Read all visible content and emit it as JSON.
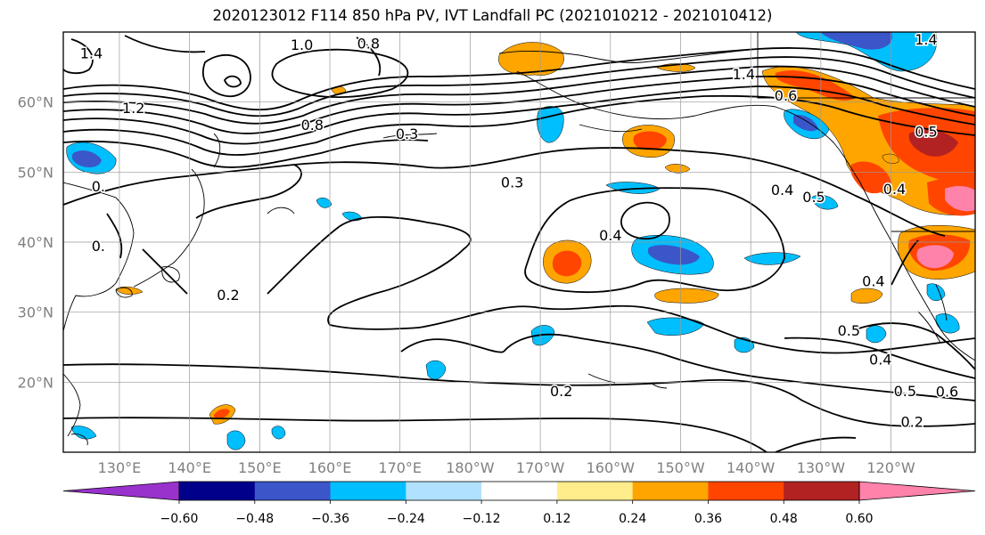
{
  "title": "2020123012 F114 850 hPa PV, IVT Landfall PC (2021010212 - 2021010412)",
  "map": {
    "lat_labels": [
      "60°N",
      "50°N",
      "40°N",
      "30°N",
      "20°N"
    ],
    "lon_labels": [
      "130°E",
      "140°E",
      "150°E",
      "160°E",
      "170°E",
      "180°W",
      "170°W",
      "160°W",
      "150°W",
      "140°W",
      "130°W",
      "120°W"
    ],
    "label_color": "#808080",
    "lat_values": [
      60,
      50,
      40,
      30,
      20
    ],
    "lon_values": [
      130,
      140,
      150,
      160,
      170,
      180,
      190,
      200,
      210,
      220,
      230,
      240
    ],
    "lon_range": [
      122,
      252
    ],
    "lat_range": [
      10,
      70
    ],
    "contour_labels": [
      {
        "text": "1.4",
        "lon": 126,
        "lat": 67
      },
      {
        "text": "1.0",
        "lon": 156,
        "lat": 68.2
      },
      {
        "text": "0.8",
        "lon": 165.5,
        "lat": 68.4
      },
      {
        "text": "1.2",
        "lon": 132,
        "lat": 59.2
      },
      {
        "text": "0.8",
        "lon": 157.5,
        "lat": 56.8
      },
      {
        "text": "0.3",
        "lon": 171,
        "lat": 55.5
      },
      {
        "text": "0.3",
        "lon": 186,
        "lat": 48.6
      },
      {
        "text": "0.4",
        "lon": 200,
        "lat": 41
      },
      {
        "text": "0.4",
        "lon": 224.5,
        "lat": 47.5
      },
      {
        "text": "0.5",
        "lon": 229,
        "lat": 46.5
      },
      {
        "text": "0.4",
        "lon": 240.5,
        "lat": 47.6
      },
      {
        "text": "0.6",
        "lon": 225,
        "lat": 61
      },
      {
        "text": "1.4",
        "lon": 219,
        "lat": 64
      },
      {
        "text": "1.4",
        "lon": 245,
        "lat": 69
      },
      {
        "text": "0.5",
        "lon": 245,
        "lat": 55.8
      },
      {
        "text": "0.2",
        "lon": 145.5,
        "lat": 32.5
      },
      {
        "text": "0.",
        "lon": 127,
        "lat": 48
      },
      {
        "text": "0.",
        "lon": 127,
        "lat": 39.5
      },
      {
        "text": "0.4",
        "lon": 237.5,
        "lat": 34.5
      },
      {
        "text": "0.5",
        "lon": 234,
        "lat": 27.4
      },
      {
        "text": "0.4",
        "lon": 238.5,
        "lat": 23.3
      },
      {
        "text": "0.6",
        "lon": 248,
        "lat": 18.7
      },
      {
        "text": "0.5",
        "lon": 242,
        "lat": 18.8
      },
      {
        "text": "0.2",
        "lon": 193,
        "lat": 18.8
      },
      {
        "text": "0.2",
        "lon": 243,
        "lat": 14.4
      }
    ]
  },
  "colorbar": {
    "ticks": [
      "−0.60",
      "−0.48",
      "−0.36",
      "−0.24",
      "−0.12",
      "0.12",
      "0.24",
      "0.36",
      "0.48",
      "0.60"
    ],
    "colors": [
      "#9932cc",
      "#00008b",
      "#3a56c8",
      "#00bfff",
      "#b0e2ff",
      "#ffffff",
      "#ffec8b",
      "#ffa500",
      "#ff4500",
      "#b22222",
      "#ff82ab",
      "#ff82ab"
    ],
    "extend": "both"
  }
}
